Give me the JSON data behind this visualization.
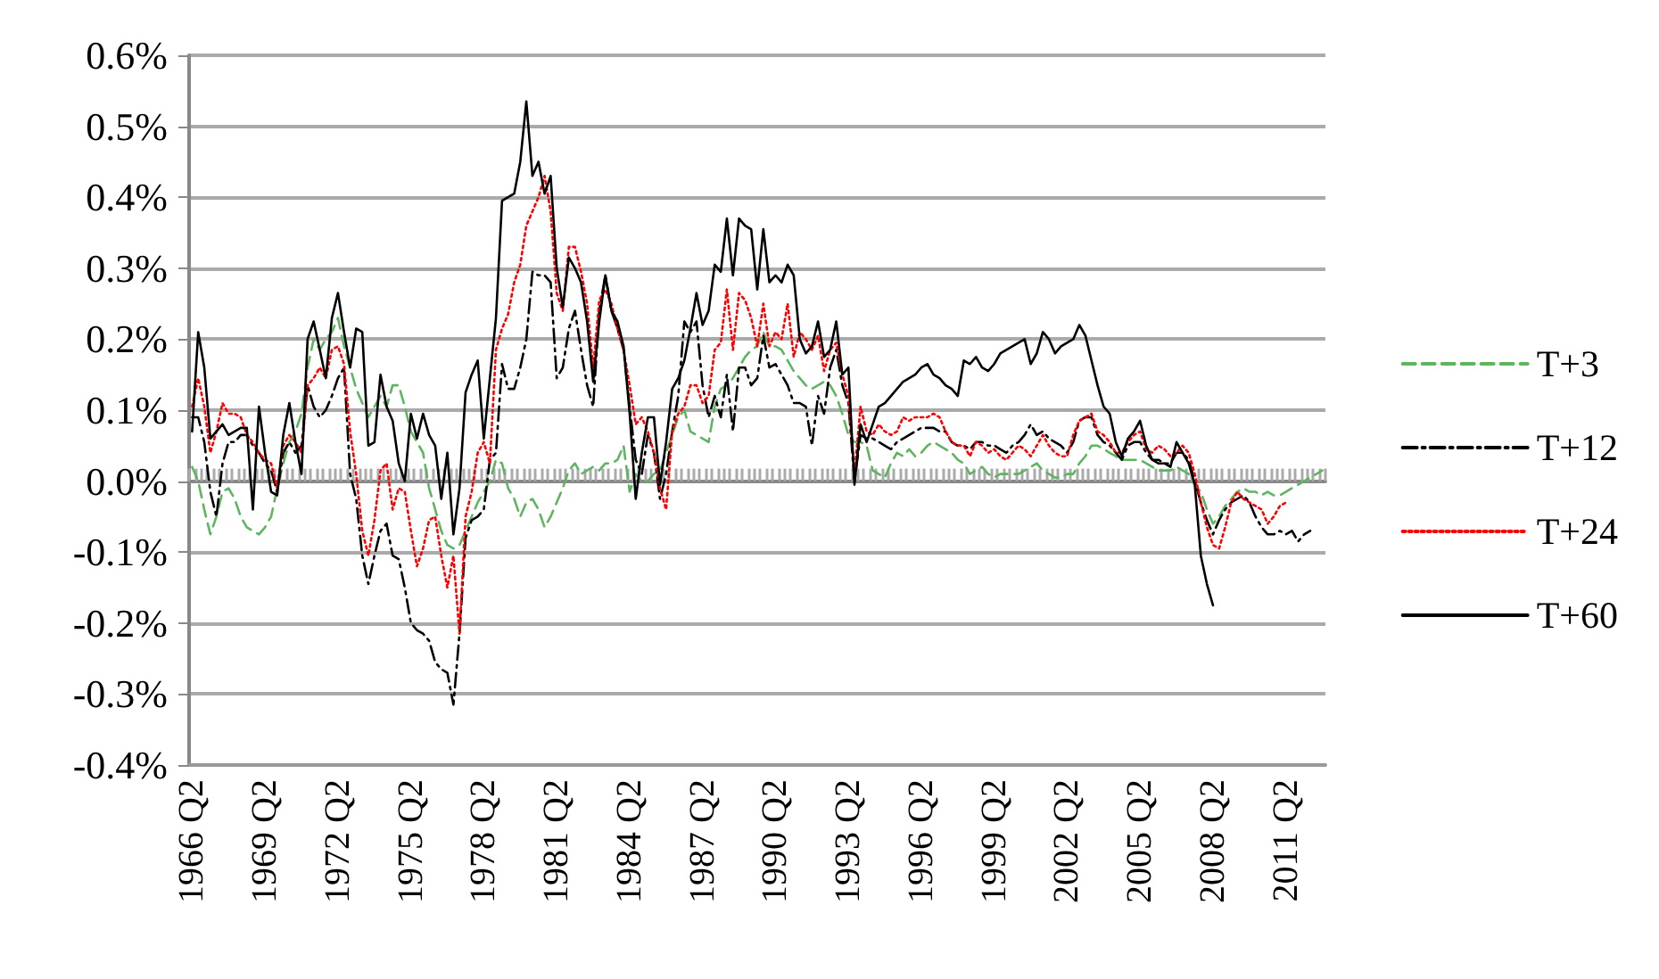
{
  "chart_data": {
    "type": "line",
    "categories": [
      "1966 Q2",
      null,
      null,
      null,
      null,
      null,
      null,
      null,
      null,
      null,
      null,
      null,
      "1969 Q2",
      null,
      null,
      null,
      null,
      null,
      null,
      null,
      null,
      null,
      null,
      null,
      "1972 Q2",
      null,
      null,
      null,
      null,
      null,
      null,
      null,
      null,
      null,
      null,
      null,
      "1975 Q2",
      null,
      null,
      null,
      null,
      null,
      null,
      null,
      null,
      null,
      null,
      null,
      "1978 Q2",
      null,
      null,
      null,
      null,
      null,
      null,
      null,
      null,
      null,
      null,
      null,
      "1981 Q2",
      null,
      null,
      null,
      null,
      null,
      null,
      null,
      null,
      null,
      null,
      null,
      "1984 Q2",
      null,
      null,
      null,
      null,
      null,
      null,
      null,
      null,
      null,
      null,
      null,
      "1987 Q2",
      null,
      null,
      null,
      null,
      null,
      null,
      null,
      null,
      null,
      null,
      null,
      "1990 Q2",
      null,
      null,
      null,
      null,
      null,
      null,
      null,
      null,
      null,
      null,
      null,
      "1993 Q2",
      null,
      null,
      null,
      null,
      null,
      null,
      null,
      null,
      null,
      null,
      null,
      "1996 Q2",
      null,
      null,
      null,
      null,
      null,
      null,
      null,
      null,
      null,
      null,
      null,
      "1999 Q2",
      null,
      null,
      null,
      null,
      null,
      null,
      null,
      null,
      null,
      null,
      null,
      "2002 Q2",
      null,
      null,
      null,
      null,
      null,
      null,
      null,
      null,
      null,
      null,
      null,
      "2005 Q2",
      null,
      null,
      null,
      null,
      null,
      null,
      null,
      null,
      null,
      null,
      null,
      "2008 Q2",
      null,
      null,
      null,
      null,
      null,
      null,
      null,
      null,
      null,
      null,
      null,
      "2011 Q2",
      null,
      null,
      null,
      null,
      null,
      null
    ],
    "series": [
      {
        "name": "T+3",
        "color": "#5fb55f",
        "line_style": "dashed",
        "values": [
          0.02,
          0,
          -0.04,
          -0.075,
          -0.05,
          -0.015,
          -0.01,
          -0.025,
          -0.05,
          -0.065,
          -0.07,
          -0.075,
          -0.065,
          -0.05,
          -0.01,
          0.025,
          0.055,
          0.07,
          0.095,
          0.16,
          0.2,
          0.185,
          0.2,
          0.21,
          0.23,
          0.19,
          0.16,
          0.13,
          0.11,
          0.09,
          0.105,
          0.12,
          0.105,
          0.135,
          0.135,
          0.105,
          0.07,
          0.055,
          0.04,
          -0.01,
          -0.04,
          -0.07,
          -0.09,
          -0.095,
          -0.09,
          -0.07,
          -0.05,
          -0.03,
          -0.015,
          0,
          0.03,
          0.025,
          -0.01,
          -0.025,
          -0.05,
          -0.03,
          -0.025,
          -0.04,
          -0.065,
          -0.05,
          -0.03,
          -0.01,
          0.015,
          0.025,
          0.01,
          0.015,
          0.02,
          0.015,
          0.025,
          0.025,
          0.03,
          0.05,
          -0.015,
          0.01,
          0,
          0,
          0.01,
          0.015,
          0.04,
          0.065,
          0.09,
          0.1,
          0.07,
          0.065,
          0.06,
          0.055,
          0.105,
          0.13,
          0.135,
          0.145,
          0.16,
          0.175,
          0.185,
          0.19,
          0.21,
          0.19,
          0.19,
          0.185,
          0.17,
          0.155,
          0.145,
          0.135,
          0.13,
          0.135,
          0.14,
          0.135,
          0.12,
          0.095,
          0.065,
          0.055,
          0.055,
          0.05,
          0.015,
          0.01,
          0.005,
          0.025,
          0.04,
          0.035,
          0.045,
          0.035,
          0.04,
          0.05,
          0.055,
          0.05,
          0.045,
          0.04,
          0.03,
          0.025,
          0.01,
          0.015,
          0.02,
          0.01,
          0.005,
          0.01,
          0.01,
          0.01,
          0.01,
          0.015,
          0.02,
          0.025,
          0.015,
          0.01,
          0.005,
          0.005,
          0.01,
          0.01,
          0.025,
          0.035,
          0.05,
          0.05,
          0.045,
          0.04,
          0.035,
          0.03,
          0.03,
          0.03,
          0.03,
          0.025,
          0.02,
          0.015,
          0.015,
          0.015,
          0.02,
          0.015,
          0.01,
          -0.005,
          -0.015,
          -0.04,
          -0.06,
          -0.05,
          -0.035,
          -0.025,
          -0.015,
          -0.01,
          -0.015,
          -0.015,
          -0.02,
          -0.015,
          -0.02,
          -0.02,
          -0.015,
          -0.01,
          -0.005,
          0,
          0.005,
          0.01,
          0.015
        ]
      },
      {
        "name": "T+12",
        "color": "#000000",
        "line_style": "dashdot",
        "values": [
          0.09,
          0.09,
          0.055,
          -0.015,
          -0.05,
          0.025,
          0.055,
          0.055,
          0.065,
          0.065,
          0.05,
          0.04,
          0.025,
          0.015,
          -0.015,
          0.04,
          0.055,
          0.04,
          0.05,
          0.135,
          0.105,
          0.09,
          0.1,
          0.12,
          0.145,
          0.16,
          0.01,
          -0.025,
          -0.105,
          -0.145,
          -0.105,
          -0.07,
          -0.06,
          -0.105,
          -0.11,
          -0.15,
          -0.2,
          -0.21,
          -0.215,
          -0.225,
          -0.255,
          -0.265,
          -0.27,
          -0.315,
          -0.215,
          -0.08,
          -0.055,
          -0.05,
          -0.04,
          0.03,
          0.04,
          0.165,
          0.13,
          0.13,
          0.16,
          0.2,
          0.295,
          0.29,
          0.29,
          0.28,
          0.145,
          0.16,
          0.215,
          0.24,
          0.185,
          0.135,
          0.105,
          0.24,
          0.29,
          0.24,
          0.215,
          0.185,
          0.105,
          0.03,
          0.01,
          0.065,
          0.04,
          -0.025,
          0.01,
          0.07,
          0.12,
          0.225,
          0.21,
          0.225,
          0.135,
          0.09,
          0.12,
          0.09,
          0.15,
          0.07,
          0.16,
          0.16,
          0.135,
          0.145,
          0.205,
          0.16,
          0.165,
          0.15,
          0.135,
          0.11,
          0.11,
          0.105,
          0.05,
          0.12,
          0.095,
          0.16,
          0.185,
          0.135,
          0.11,
          0,
          0.065,
          0.06,
          0.06,
          0.055,
          0.05,
          0.045,
          0.055,
          0.06,
          0.065,
          0.07,
          0.075,
          0.075,
          0.075,
          0.07,
          0.07,
          0.055,
          0.05,
          0.05,
          0.045,
          0.055,
          0.055,
          0.05,
          0.05,
          0.045,
          0.04,
          0.05,
          0.055,
          0.065,
          0.08,
          0.065,
          0.07,
          0.06,
          0.055,
          0.05,
          0.04,
          0.055,
          0.085,
          0.09,
          0.09,
          0.065,
          0.055,
          0.05,
          0.04,
          0.03,
          0.05,
          0.055,
          0.055,
          0.04,
          0.03,
          0.03,
          0.025,
          0.025,
          0.04,
          0.04,
          0.03,
          0,
          -0.03,
          -0.055,
          -0.075,
          -0.055,
          -0.04,
          -0.03,
          -0.025,
          -0.02,
          -0.03,
          -0.05,
          -0.065,
          -0.075,
          -0.075,
          -0.07,
          -0.075,
          -0.07,
          -0.085,
          -0.075,
          -0.07,
          null,
          null
        ]
      },
      {
        "name": "T+24",
        "color": "#ff0000",
        "line_style": "dotted",
        "values": [
          0.105,
          0.145,
          0.105,
          0.04,
          0.07,
          0.11,
          0.095,
          0.095,
          0.09,
          0.065,
          0.055,
          0.04,
          0.03,
          0.025,
          -0.01,
          0.05,
          0.065,
          0.055,
          0.04,
          0.135,
          0.145,
          0.16,
          0.145,
          0.185,
          0.19,
          0.165,
          0.07,
          0.01,
          -0.07,
          -0.105,
          -0.055,
          0.015,
          0.025,
          -0.04,
          -0.01,
          -0.015,
          -0.07,
          -0.12,
          -0.095,
          -0.055,
          -0.05,
          -0.105,
          -0.15,
          -0.105,
          -0.215,
          -0.05,
          -0.015,
          0.04,
          0.055,
          0.025,
          0.185,
          0.215,
          0.235,
          0.28,
          0.305,
          0.36,
          0.38,
          0.4,
          0.43,
          0.38,
          0.265,
          0.24,
          0.33,
          0.33,
          0.295,
          0.25,
          0.16,
          0.255,
          0.27,
          0.25,
          0.215,
          0.185,
          0.135,
          0.08,
          0.09,
          0.07,
          0.04,
          -0.01,
          -0.04,
          0.07,
          0.095,
          0.105,
          0.135,
          0.135,
          0.11,
          0.12,
          0.185,
          0.195,
          0.27,
          0.185,
          0.265,
          0.255,
          0.23,
          0.19,
          0.25,
          0.19,
          0.21,
          0.2,
          0.25,
          0.175,
          0.21,
          0.2,
          0.185,
          0.205,
          0.155,
          0.185,
          0.195,
          0.15,
          0.12,
          0.01,
          0.105,
          0.07,
          0.065,
          0.08,
          0.07,
          0.065,
          0.07,
          0.09,
          0.085,
          0.09,
          0.09,
          0.09,
          0.095,
          0.09,
          0.07,
          0.055,
          0.05,
          0.05,
          0.035,
          0.055,
          0.05,
          0.04,
          0.045,
          0.035,
          0.03,
          0.04,
          0.05,
          0.045,
          0.035,
          0.05,
          0.065,
          0.05,
          0.04,
          0.035,
          0.035,
          0.065,
          0.085,
          0.09,
          0.095,
          0.07,
          0.065,
          0.055,
          0.04,
          0.04,
          0.055,
          0.065,
          0.07,
          0.045,
          0.04,
          0.05,
          0.045,
          0.035,
          0.04,
          0.05,
          0.04,
          0.01,
          -0.03,
          -0.065,
          -0.09,
          -0.095,
          -0.065,
          -0.03,
          -0.015,
          -0.025,
          -0.03,
          -0.035,
          -0.04,
          -0.06,
          -0.05,
          -0.035,
          -0.03,
          null,
          null,
          null,
          null,
          null,
          null
        ]
      },
      {
        "name": "T+60",
        "color": "#000000",
        "line_style": "solid",
        "values": [
          0.07,
          0.21,
          0.16,
          0.06,
          0.07,
          0.08,
          0.065,
          0.07,
          0.075,
          0.075,
          -0.04,
          0.105,
          0.04,
          -0.015,
          -0.02,
          0.065,
          0.11,
          0.055,
          0.01,
          0.2,
          0.225,
          0.185,
          0.145,
          0.23,
          0.265,
          0.21,
          0.16,
          0.215,
          0.21,
          0.05,
          0.055,
          0.15,
          0.105,
          0.085,
          0.025,
          0,
          0.095,
          0.06,
          0.095,
          0.065,
          0.05,
          -0.025,
          0.04,
          -0.075,
          -0.01,
          0.125,
          0.15,
          0.17,
          0.06,
          0.145,
          0.23,
          0.395,
          0.4,
          0.405,
          0.45,
          0.535,
          0.43,
          0.45,
          0.405,
          0.43,
          0.3,
          0.245,
          0.315,
          0.3,
          0.28,
          0.225,
          0.14,
          0.225,
          0.29,
          0.24,
          0.225,
          0.19,
          0.095,
          -0.025,
          0.04,
          0.09,
          0.09,
          -0.005,
          0.055,
          0.13,
          0.145,
          0.17,
          0.215,
          0.265,
          0.22,
          0.24,
          0.305,
          0.295,
          0.37,
          0.29,
          0.37,
          0.36,
          0.355,
          0.27,
          0.355,
          0.28,
          0.29,
          0.28,
          0.305,
          0.29,
          0.2,
          0.18,
          0.19,
          0.225,
          0.175,
          0.185,
          0.225,
          0.15,
          0.16,
          -0.005,
          0.08,
          0.055,
          0.08,
          0.105,
          0.11,
          0.12,
          0.13,
          0.14,
          0.145,
          0.15,
          0.16,
          0.165,
          0.15,
          0.145,
          0.135,
          0.13,
          0.12,
          0.17,
          0.165,
          0.175,
          0.16,
          0.155,
          0.165,
          0.18,
          0.185,
          0.19,
          0.195,
          0.2,
          0.165,
          0.18,
          0.21,
          0.2,
          0.18,
          0.19,
          0.195,
          0.2,
          0.22,
          0.205,
          0.17,
          0.135,
          0.105,
          0.095,
          0.055,
          0.035,
          0.06,
          0.07,
          0.085,
          0.05,
          0.03,
          0.025,
          0.025,
          0.02,
          0.055,
          0.04,
          0.025,
          -0.005,
          -0.105,
          -0.145,
          -0.175,
          null,
          null,
          null,
          null,
          null,
          null,
          null,
          null,
          null,
          null,
          null,
          null,
          null,
          null,
          null,
          null,
          null,
          null
        ]
      }
    ],
    "ylim": [
      -0.4,
      0.6
    ],
    "yticks": [
      {
        "value": -0.4,
        "label": "-0.4%"
      },
      {
        "value": -0.3,
        "label": "-0.3%"
      },
      {
        "value": -0.2,
        "label": "-0.2%"
      },
      {
        "value": -0.1,
        "label": "-0.1%"
      },
      {
        "value": 0,
        "label": "0.0%"
      },
      {
        "value": 0.1,
        "label": "0.1%"
      },
      {
        "value": 0.2,
        "label": "0.2%"
      },
      {
        "value": 0.3,
        "label": "0.3%"
      },
      {
        "value": 0.4,
        "label": "0.4%"
      },
      {
        "value": 0.5,
        "label": "0.5%"
      },
      {
        "value": 0.6,
        "label": "0.6%"
      }
    ],
    "grid": "y",
    "legend": "right",
    "marker": "none"
  }
}
